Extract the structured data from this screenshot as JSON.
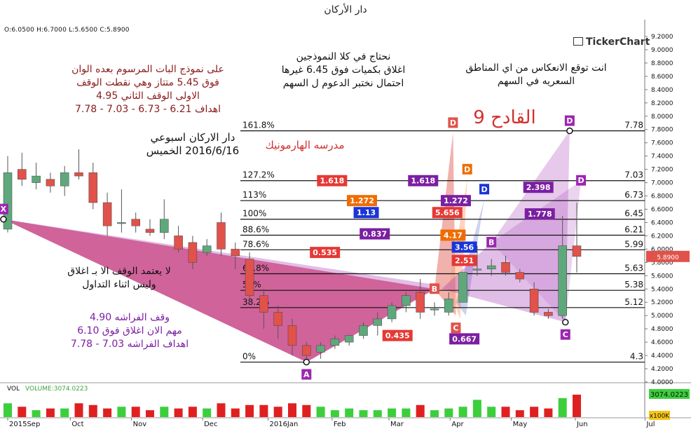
{
  "window": {
    "title": "دار الأركان"
  },
  "ohlc": {
    "open": "6.0500",
    "high": "6.7000",
    "low": "5.6500",
    "close": "5.8900"
  },
  "brand": {
    "name": "TickerChart"
  },
  "notes": {
    "top_left": [
      "على نموذج البات المرسوم بعده الوان",
      "فوق 5.45 متتاز وهي نقطت الوقف",
      "الاولى الوقف الثاني 4.95",
      "اهداف 6.21 - 6.73 - 7.03 - 7.78"
    ],
    "top_center": [
      "نحتاج في كلا النموذجين",
      "اغلاق بكميات فوق 6.45 غيرها",
      "احتمال نختبر الدعوم ل السهم"
    ],
    "top_right": [
      "انت توقع الانعكاس من اي المناطق",
      "السعريه في السهم"
    ],
    "weekly": [
      "دار الاركان اسبوعي",
      "2016/6/16 الخميس"
    ],
    "school": "مدرسه الهارمونيك",
    "next": "القادح 9",
    "stop_rule": [
      "لا يعتمد الوقف الا بـ اغلاق",
      "وليس اثناء التداول"
    ],
    "butterfly": [
      "وقف الفراشه 4.90",
      "مهم الان اغلاق فوق 6.10",
      "اهداف الفراشه 7.03 - 7.78"
    ]
  },
  "colors": {
    "up": "#5fa87c",
    "down": "#e0524a",
    "bat": "#c2185b",
    "butterfly": "#9c27b0",
    "red_text": "#8b1a1a",
    "purple_text": "#7b1fa2"
  },
  "chart_data": {
    "type": "candlestick",
    "title": "",
    "ylim": [
      4.0,
      9.2
    ],
    "y_ticks": [
      "4.0000",
      "4.2000",
      "4.4000",
      "4.6000",
      "4.8000",
      "5.0000",
      "5.2000",
      "5.4000",
      "5.6000",
      "5.8000",
      "6.0000",
      "6.2000",
      "6.4000",
      "6.6000",
      "6.8000",
      "7.0000",
      "7.2000",
      "7.4000",
      "7.6000",
      "7.8000",
      "8.0000",
      "8.2000",
      "8.4000",
      "8.6000",
      "8.8000",
      "9.0000",
      "9.2000"
    ],
    "last_price": "5.8900",
    "x_labels": [
      "2015Sep",
      "Oct",
      "Nov",
      "Dec",
      "2016Jan",
      "Feb",
      "Mar",
      "Apr",
      "May",
      "Jun",
      "Jul"
    ],
    "candles": [
      {
        "o": 6.3,
        "h": 7.4,
        "l": 6.25,
        "c": 7.15
      },
      {
        "o": 7.2,
        "h": 7.45,
        "l": 6.95,
        "c": 7.05
      },
      {
        "o": 7.0,
        "h": 7.3,
        "l": 6.9,
        "c": 7.1
      },
      {
        "o": 7.05,
        "h": 7.15,
        "l": 6.85,
        "c": 6.95
      },
      {
        "o": 6.95,
        "h": 7.25,
        "l": 6.8,
        "c": 7.15
      },
      {
        "o": 7.15,
        "h": 7.5,
        "l": 7.05,
        "c": 7.1
      },
      {
        "o": 7.15,
        "h": 7.3,
        "l": 6.6,
        "c": 6.7
      },
      {
        "o": 6.7,
        "h": 6.85,
        "l": 6.2,
        "c": 6.35
      },
      {
        "o": 6.4,
        "h": 6.9,
        "l": 6.25,
        "c": 6.4
      },
      {
        "o": 6.45,
        "h": 6.55,
        "l": 6.25,
        "c": 6.35
      },
      {
        "o": 6.3,
        "h": 6.45,
        "l": 6.2,
        "c": 6.25
      },
      {
        "o": 6.25,
        "h": 6.75,
        "l": 6.15,
        "c": 6.45
      },
      {
        "o": 6.2,
        "h": 6.35,
        "l": 5.95,
        "c": 6.0
      },
      {
        "o": 6.1,
        "h": 6.2,
        "l": 5.7,
        "c": 5.8
      },
      {
        "o": 5.95,
        "h": 6.15,
        "l": 5.9,
        "c": 6.05
      },
      {
        "o": 6.4,
        "h": 6.55,
        "l": 5.9,
        "c": 6.0
      },
      {
        "o": 6.0,
        "h": 6.1,
        "l": 5.7,
        "c": 5.9
      },
      {
        "o": 5.85,
        "h": 5.95,
        "l": 5.2,
        "c": 5.3
      },
      {
        "o": 5.3,
        "h": 5.4,
        "l": 4.8,
        "c": 5.05
      },
      {
        "o": 5.05,
        "h": 5.15,
        "l": 4.65,
        "c": 4.85
      },
      {
        "o": 4.85,
        "h": 4.95,
        "l": 4.4,
        "c": 4.55
      },
      {
        "o": 4.55,
        "h": 4.6,
        "l": 4.3,
        "c": 4.4
      },
      {
        "o": 4.45,
        "h": 4.6,
        "l": 4.35,
        "c": 4.55
      },
      {
        "o": 4.55,
        "h": 4.7,
        "l": 4.5,
        "c": 4.65
      },
      {
        "o": 4.6,
        "h": 4.7,
        "l": 4.55,
        "c": 4.7
      },
      {
        "o": 4.7,
        "h": 4.9,
        "l": 4.65,
        "c": 4.85
      },
      {
        "o": 4.85,
        "h": 5.05,
        "l": 4.7,
        "c": 4.95
      },
      {
        "o": 4.95,
        "h": 5.2,
        "l": 4.9,
        "c": 5.15
      },
      {
        "o": 5.15,
        "h": 5.35,
        "l": 5.05,
        "c": 5.3
      },
      {
        "o": 5.35,
        "h": 5.55,
        "l": 4.95,
        "c": 5.05
      },
      {
        "o": 5.1,
        "h": 5.2,
        "l": 5.0,
        "c": 5.1
      },
      {
        "o": 5.05,
        "h": 5.35,
        "l": 5.0,
        "c": 5.25
      },
      {
        "o": 5.2,
        "h": 5.65,
        "l": 5.2,
        "c": 5.65
      },
      {
        "o": 5.7,
        "h": 6.05,
        "l": 5.6,
        "c": 5.7
      },
      {
        "o": 5.7,
        "h": 5.85,
        "l": 5.6,
        "c": 5.75
      },
      {
        "o": 5.8,
        "h": 5.9,
        "l": 5.6,
        "c": 5.65
      },
      {
        "o": 5.65,
        "h": 5.7,
        "l": 5.5,
        "c": 5.55
      },
      {
        "o": 5.4,
        "h": 5.5,
        "l": 5.0,
        "c": 5.05
      },
      {
        "o": 5.05,
        "h": 5.1,
        "l": 4.95,
        "c": 5.0
      },
      {
        "o": 5.0,
        "h": 6.5,
        "l": 4.95,
        "c": 6.05
      },
      {
        "o": 6.05,
        "h": 6.7,
        "l": 5.65,
        "c": 5.89
      }
    ],
    "fib_levels": [
      {
        "pct": "161.8%",
        "price": "7.78"
      },
      {
        "pct": "127.2%",
        "price": "7.03"
      },
      {
        "pct": "113%",
        "price": "6.73"
      },
      {
        "pct": "100%",
        "price": "6.45"
      },
      {
        "pct": "88.6%",
        "price": "6.21"
      },
      {
        "pct": "78.6%",
        "price": "5.99"
      },
      {
        "pct": "61.8%",
        "price": "5.63"
      },
      {
        "pct": "50%",
        "price": "5.38"
      },
      {
        "pct": "38.2%",
        "price": "5.12"
      },
      {
        "pct": "0%",
        "price": "4.3"
      }
    ],
    "ratio_labels": [
      {
        "text": "1.618",
        "price": 7.03,
        "color": "#e53935"
      },
      {
        "text": "1.618",
        "price": 7.03,
        "color": "#7b1fa2"
      },
      {
        "text": "1.272",
        "price": 6.73,
        "color": "#ef6c00"
      },
      {
        "text": "1.272",
        "price": 6.73,
        "color": "#7b1fa2"
      },
      {
        "text": "1.13",
        "price": 6.55,
        "color": "#1a35d8"
      },
      {
        "text": "5.656",
        "price": 6.55,
        "color": "#e53935"
      },
      {
        "text": "2.398",
        "price": 6.93,
        "color": "#7b1fa2"
      },
      {
        "text": "1.778",
        "price": 6.53,
        "color": "#7b1fa2"
      },
      {
        "text": "0.837",
        "price": 6.23,
        "color": "#7b1fa2"
      },
      {
        "text": "4.17",
        "price": 6.21,
        "color": "#ef6c00"
      },
      {
        "text": "3.56",
        "price": 6.03,
        "color": "#1a35d8"
      },
      {
        "text": "0.535",
        "price": 5.95,
        "color": "#e53935"
      },
      {
        "text": "2.51",
        "price": 5.83,
        "color": "#e53935"
      },
      {
        "text": "0.435",
        "price": 4.7,
        "color": "#e53935"
      },
      {
        "text": "0.667",
        "price": 4.65,
        "color": "#7b1fa2"
      }
    ],
    "point_labels": [
      "X",
      "A",
      "B",
      "C",
      "D"
    ],
    "volume": {
      "label": "VOL",
      "readout": "VOLUME:3074.0223",
      "last": "3074.0223",
      "scale": "x100K",
      "values": [
        0.8,
        0.6,
        0.4,
        0.5,
        0.5,
        0.8,
        0.7,
        0.5,
        0.6,
        0.6,
        0.4,
        0.6,
        0.5,
        0.6,
        0.5,
        0.8,
        0.5,
        0.7,
        0.7,
        0.6,
        0.8,
        0.7,
        0.6,
        0.4,
        0.5,
        0.4,
        0.4,
        0.5,
        0.5,
        0.7,
        0.4,
        0.5,
        0.6,
        1.0,
        0.6,
        0.6,
        0.4,
        0.6,
        0.5,
        1.1,
        1.3
      ]
    }
  }
}
